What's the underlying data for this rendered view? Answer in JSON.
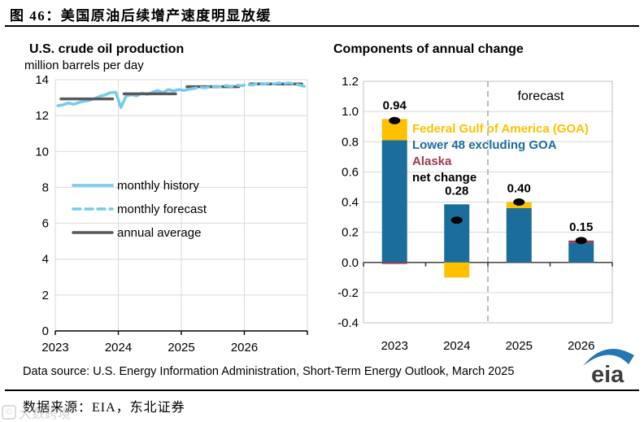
{
  "figure": {
    "title": "图  46：美国原油后续增产速度明显放缓",
    "source_cn": "数据来源：EIA，东北证券",
    "watermark": "大数跨境"
  },
  "footer": {
    "data_source": "Data source: U.S. Energy Information Administration, Short-Term Energy Outlook, March 2025",
    "eia_logo_text": "eia"
  },
  "colors": {
    "grid": "#d9d9d9",
    "plot_border": "#bfbfbf",
    "axis": "#000000",
    "zero_axis": "#404040",
    "forecast_divider": "#a6a6a6",
    "history_blue": "#76cbec",
    "annual_gray": "#595959",
    "bar_blue": "#1b6d9b",
    "bar_gold": "#ffc000",
    "bar_red": "#9e3b4a",
    "dot_black": "#000000",
    "eia_swoosh_blue": "#2577b3",
    "eia_text_gray": "#3d3d3f"
  },
  "chart_data": [
    {
      "type": "line",
      "title": "U.S. crude oil production",
      "subtitle": "million barrels per day",
      "ylim": [
        0,
        14
      ],
      "ytick_step": 2,
      "x_years": [
        "2023",
        "2024",
        "2025",
        "2026"
      ],
      "months_per_year": 12,
      "legend": [
        "monthly history",
        "monthly forecast",
        "annual average"
      ],
      "series": [
        {
          "name": "monthly history",
          "style": "solid",
          "color": "#76cbec",
          "start_month": 0,
          "values": [
            12.55,
            12.6,
            12.7,
            12.63,
            12.73,
            12.8,
            12.85,
            12.95,
            13.08,
            13.15,
            13.28,
            13.3,
            12.45,
            13.1,
            13.16,
            13.1,
            13.25,
            13.18,
            13.3,
            13.4,
            13.28,
            13.45,
            13.38,
            13.45,
            13.4,
            13.47
          ]
        },
        {
          "name": "monthly forecast",
          "style": "dashed",
          "color": "#76cbec",
          "start_month": 25,
          "values": [
            13.47,
            13.52,
            13.58,
            13.55,
            13.6,
            13.63,
            13.6,
            13.67,
            13.62,
            13.7,
            13.66,
            13.74,
            13.7,
            13.78,
            13.74,
            13.8,
            13.76,
            13.82,
            13.78,
            13.82,
            13.76,
            13.7,
            13.62
          ]
        },
        {
          "name": "annual average",
          "style": "solid",
          "color": "#595959",
          "annual": true,
          "values": [
            12.93,
            13.21,
            13.61,
            13.76
          ]
        }
      ]
    },
    {
      "type": "bar",
      "title": "Components of annual change",
      "ylim": [
        -0.4,
        1.2
      ],
      "ytick_step": 0.2,
      "categories": [
        "2023",
        "2024",
        "2025",
        "2026"
      ],
      "forecast_label": "forecast",
      "forecast_divider_after_index": 1,
      "bar_labels": [
        "0.94",
        "0.28",
        "0.40",
        "0.15"
      ],
      "series": [
        {
          "name": "Federal Gulf  of America (GOA)",
          "color": "#ffc000",
          "stack": 1,
          "values": [
            0.14,
            -0.1,
            0.04,
            0
          ]
        },
        {
          "name": "Lower 48 excluding GOA",
          "color": "#1b6d9b",
          "stack": 0,
          "values": [
            0.81,
            0.385,
            0.36,
            0.13
          ]
        },
        {
          "name": "Alaska",
          "color": "#9e3b4a",
          "stack": 2,
          "values": [
            -0.01,
            0,
            0,
            0.015
          ]
        },
        {
          "name": "net change",
          "color": "#000000",
          "point": true,
          "values": [
            0.94,
            0.28,
            0.4,
            0.145
          ]
        }
      ]
    }
  ]
}
